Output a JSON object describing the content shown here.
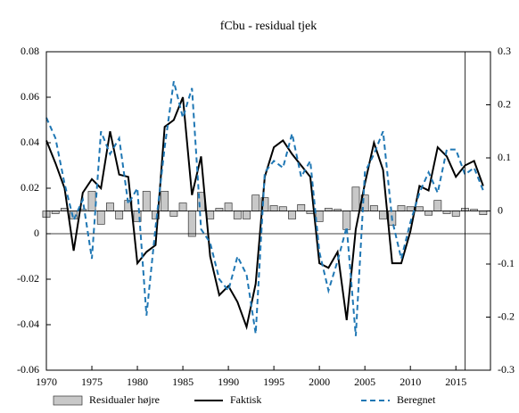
{
  "chart_data": {
    "type": "line",
    "title": "fCbu - residual tjek",
    "x": [
      1970,
      1971,
      1972,
      1973,
      1974,
      1975,
      1976,
      1977,
      1978,
      1979,
      1980,
      1981,
      1982,
      1983,
      1984,
      1985,
      1986,
      1987,
      1988,
      1989,
      1990,
      1991,
      1992,
      1993,
      1994,
      1995,
      1996,
      1997,
      1998,
      1999,
      2000,
      2001,
      2002,
      2003,
      2004,
      2005,
      2006,
      2007,
      2008,
      2009,
      2010,
      2011,
      2012,
      2013,
      2014,
      2015,
      2016,
      2017,
      2018
    ],
    "series": [
      {
        "name": "Residualer højre",
        "type": "bar",
        "axis": "y2",
        "color": "#c8c8c8",
        "values": [
          -0.012,
          -0.005,
          0.005,
          -0.015,
          0.003,
          0.037,
          -0.025,
          0.015,
          -0.015,
          0.02,
          -0.02,
          0.037,
          -0.015,
          0.037,
          -0.01,
          0.015,
          -0.048,
          0.035,
          -0.015,
          0.005,
          0.015,
          -0.015,
          -0.015,
          0.03,
          0.025,
          0.01,
          0.008,
          -0.015,
          0.012,
          -0.005,
          -0.02,
          0.005,
          0.003,
          -0.035,
          0.045,
          0.03,
          0.01,
          -0.015,
          -0.027,
          0.01,
          0.008,
          0.008,
          -0.008,
          0.02,
          -0.005,
          -0.01,
          0.005,
          0.003,
          -0.007
        ]
      },
      {
        "name": "Faktisk",
        "type": "line",
        "color": "#000000",
        "values": [
          0.041,
          0.031,
          0.02,
          -0.0075,
          0.018,
          0.024,
          0.02,
          0.045,
          0.026,
          0.025,
          -0.013,
          -0.008,
          -0.005,
          0.047,
          0.05,
          0.06,
          0.017,
          0.034,
          -0.01,
          -0.027,
          -0.023,
          -0.03,
          -0.041,
          -0.022,
          0.025,
          0.038,
          0.041,
          0.035,
          0.03,
          0.025,
          -0.013,
          -0.015,
          -0.008,
          -0.038,
          0.002,
          0.022,
          0.04,
          0.028,
          -0.013,
          -0.013,
          0.001,
          0.021,
          0.019,
          0.038,
          0.034,
          0.025,
          0.03,
          0.032,
          0.021
        ]
      },
      {
        "name": "Beregnet",
        "type": "line",
        "dashed": true,
        "color": "#1f77b4",
        "values": [
          0.051,
          0.042,
          0.022,
          0.006,
          0.015,
          -0.011,
          0.045,
          0.035,
          0.042,
          0.013,
          0.02,
          -0.036,
          0.003,
          0.038,
          0.067,
          0.051,
          0.064,
          0.002,
          -0.004,
          -0.02,
          -0.025,
          -0.01,
          -0.018,
          -0.044,
          0.027,
          0.032,
          0.029,
          0.044,
          0.025,
          0.032,
          -0.008,
          -0.025,
          -0.012,
          0.003,
          -0.045,
          0.027,
          0.035,
          0.045,
          0.006,
          -0.011,
          0.005,
          0.018,
          0.027,
          0.018,
          0.037,
          0.037,
          0.026,
          0.029,
          0.019
        ]
      }
    ],
    "xlim": [
      1970,
      2018.8
    ],
    "xticks": [
      1970,
      1975,
      1980,
      1985,
      1990,
      1995,
      2000,
      2005,
      2010,
      2015
    ],
    "ylim": [
      -0.06,
      0.08
    ],
    "yticks": [
      -0.06,
      -0.04,
      -0.02,
      0,
      0.02,
      0.04,
      0.06,
      0.08
    ],
    "y2lim": [
      -0.3,
      0.3
    ],
    "y2ticks": [
      -0.3,
      -0.2,
      -0.1,
      0,
      0.1,
      0.2,
      0.3
    ],
    "vline": 2016,
    "legend": "bottom"
  }
}
